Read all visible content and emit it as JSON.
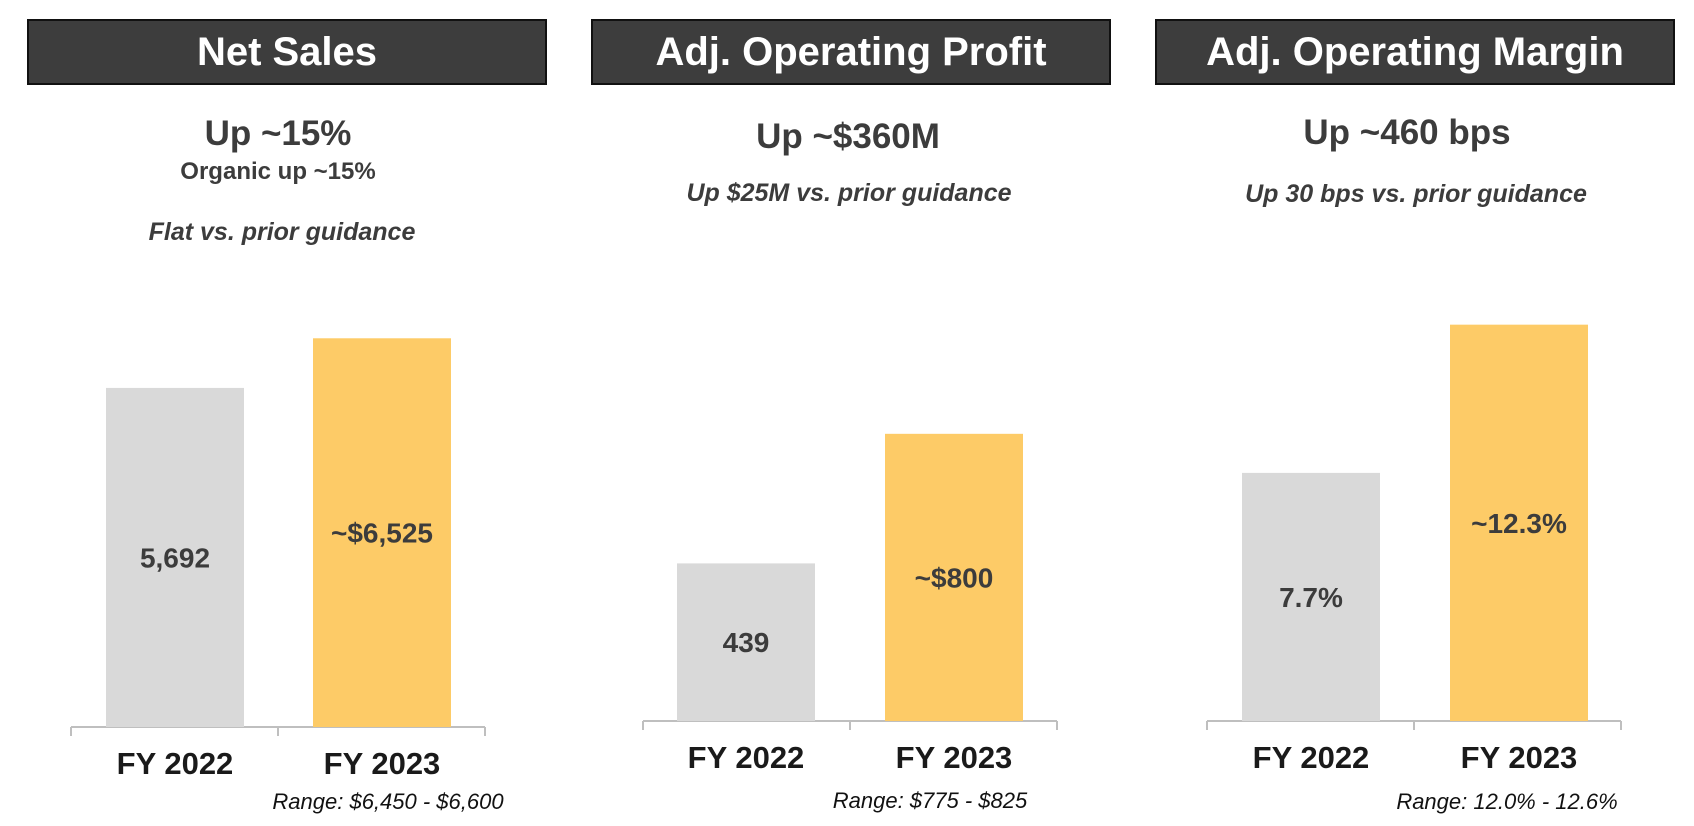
{
  "chart_data": [
    {
      "type": "bar",
      "title": "Net Sales",
      "headline": "Up ~15%",
      "subline": "Organic up ~15%",
      "note": "Flat vs. prior guidance",
      "categories": [
        "FY 2022",
        "FY 2023"
      ],
      "values": [
        5692,
        6525
      ],
      "data_labels": [
        "5,692",
        "~$6,525"
      ],
      "colors": [
        "#d9d9d9",
        "#fdcb67"
      ],
      "range_text": "Range: $6,450 - $6,600",
      "ylim": [
        0,
        7050
      ]
    },
    {
      "type": "bar",
      "title": "Adj. Operating Profit",
      "headline": "Up ~$360M",
      "note": "Up $25M vs. prior guidance",
      "categories": [
        "FY 2022",
        "FY 2023"
      ],
      "values": [
        439,
        800
      ],
      "data_labels": [
        "439",
        "~$800"
      ],
      "colors": [
        "#d9d9d9",
        "#fdcb67"
      ],
      "range_text": "Range: $775 - $825",
      "ylim": [
        0,
        1170
      ]
    },
    {
      "type": "bar",
      "title": "Adj. Operating Margin",
      "headline": "Up ~460 bps",
      "note": "Up 30 bps vs. prior guidance",
      "categories": [
        "FY 2022",
        "FY 2023"
      ],
      "values": [
        7.7,
        12.3
      ],
      "data_labels": [
        "7.7%",
        "~12.3%"
      ],
      "colors": [
        "#d9d9d9",
        "#fdcb67"
      ],
      "range_text": "Range: 12.0% - 12.6%",
      "ylim": [
        0,
        13.5
      ]
    }
  ]
}
